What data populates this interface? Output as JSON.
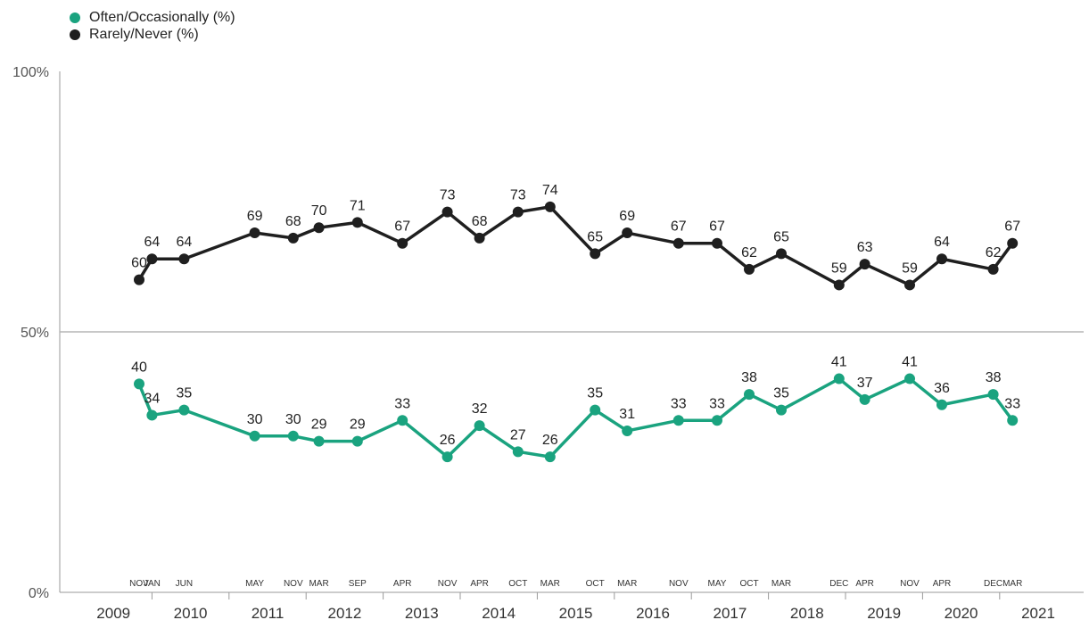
{
  "chart_data": {
    "type": "line",
    "title": "",
    "xlabel": "",
    "ylabel": "",
    "ylim": [
      0,
      100
    ],
    "y_ticks": [
      "0%",
      "50%",
      "100%"
    ],
    "years": [
      "2009",
      "2010",
      "2011",
      "2012",
      "2013",
      "2014",
      "2015",
      "2016",
      "2017",
      "2018",
      "2019",
      "2020",
      "2021"
    ],
    "x": [
      "NOV",
      "JAN",
      "JUN",
      "MAY",
      "NOV",
      "MAR",
      "SEP",
      "APR",
      "NOV",
      "APR",
      "OCT",
      "MAR",
      "OCT",
      "MAR",
      "NOV",
      "MAY",
      "OCT",
      "MAR",
      "DEC",
      "APR",
      "NOV",
      "APR",
      "DEC",
      "MAR"
    ],
    "x_dates": [
      "2009-11",
      "2010-01",
      "2010-06",
      "2011-05",
      "2011-11",
      "2012-03",
      "2012-09",
      "2013-04",
      "2013-11",
      "2014-04",
      "2014-10",
      "2015-03",
      "2015-10",
      "2016-03",
      "2016-11",
      "2017-05",
      "2017-10",
      "2018-03",
      "2018-12",
      "2019-04",
      "2019-11",
      "2020-04",
      "2020-12",
      "2021-03"
    ],
    "series": [
      {
        "name": "Often/Occasionally (%)",
        "color": "#1aa37f",
        "values": [
          40,
          34,
          35,
          30,
          30,
          29,
          29,
          33,
          26,
          32,
          27,
          26,
          35,
          31,
          33,
          33,
          38,
          35,
          41,
          37,
          41,
          36,
          38,
          33
        ]
      },
      {
        "name": "Rarely/Never (%)",
        "color": "#1f1f1f",
        "values": [
          60,
          64,
          64,
          69,
          68,
          70,
          71,
          67,
          73,
          68,
          73,
          74,
          65,
          69,
          67,
          67,
          62,
          65,
          59,
          63,
          59,
          64,
          62,
          67
        ]
      }
    ],
    "grid": "horizontal line at 50%",
    "legend": "top-left"
  }
}
